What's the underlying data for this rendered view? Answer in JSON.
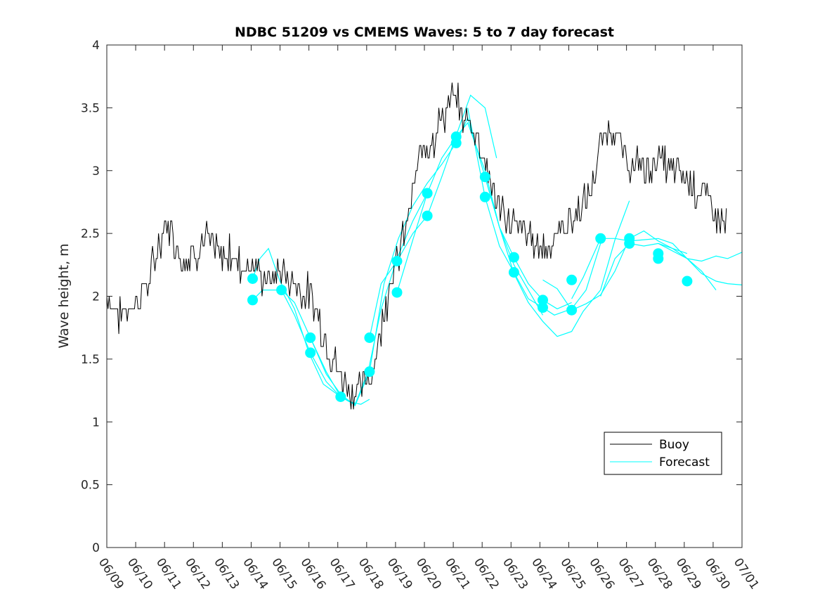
{
  "chart_data": {
    "type": "line",
    "title": "NDBC 51209 vs CMEMS Waves: 5 to 7 day forecast",
    "ylabel": "Wave height, m",
    "xlabel": "",
    "ylim": [
      0,
      4
    ],
    "xlim": [
      0,
      22
    ],
    "y_ticks": [
      "0",
      "0.5",
      "1",
      "1.5",
      "2",
      "2.5",
      "3",
      "3.5",
      "4"
    ],
    "x_ticks": [
      "06/09",
      "06/10",
      "06/11",
      "06/12",
      "06/13",
      "06/14",
      "06/15",
      "06/16",
      "06/17",
      "06/18",
      "06/19",
      "06/20",
      "06/21",
      "06/22",
      "06/23",
      "06/24",
      "06/25",
      "06/26",
      "06/27",
      "06/28",
      "06/29",
      "06/30",
      "07/01"
    ],
    "grid": false,
    "legend_position": "bottom-right",
    "colors": {
      "buoy": "#000000",
      "forecast": "#00ffff"
    },
    "series": [
      {
        "name": "Buoy",
        "x": [
          0,
          0.25,
          0.5,
          0.75,
          1,
          1.25,
          1.5,
          1.75,
          2,
          2.25,
          2.5,
          2.75,
          3,
          3.25,
          3.5,
          3.75,
          4,
          4.25,
          4.5,
          4.75,
          5,
          5.25,
          5.5,
          5.75,
          6,
          6.25,
          6.5,
          6.75,
          7,
          7.25,
          7.5,
          7.75,
          8,
          8.25,
          8.5,
          8.75,
          9,
          9.25,
          9.5,
          9.75,
          10,
          10.25,
          10.5,
          10.75,
          11,
          11.25,
          11.5,
          11.75,
          12,
          12.25,
          12.5,
          12.75,
          13,
          13.25,
          13.5,
          13.75,
          14,
          14.25,
          14.5,
          14.75,
          15,
          15.25,
          15.5,
          15.75,
          16,
          16.25,
          16.5,
          16.75,
          17,
          17.25,
          17.5,
          17.75,
          18,
          18.25,
          18.5,
          18.75,
          19,
          19.25,
          19.5,
          19.75,
          20,
          20.25,
          20.5,
          20.75,
          21,
          21.25,
          21.5
        ],
        "values": [
          2.0,
          1.9,
          1.85,
          1.9,
          1.95,
          2.05,
          2.15,
          2.35,
          2.6,
          2.5,
          2.35,
          2.3,
          2.35,
          2.4,
          2.45,
          2.35,
          2.3,
          2.35,
          2.3,
          2.25,
          2.25,
          2.2,
          2.15,
          2.1,
          2.2,
          2.15,
          2.1,
          2.05,
          2.0,
          1.9,
          1.7,
          1.55,
          1.4,
          1.3,
          1.25,
          1.25,
          1.3,
          1.45,
          1.75,
          2.05,
          2.25,
          2.45,
          2.7,
          3.0,
          3.2,
          3.25,
          3.35,
          3.5,
          3.6,
          3.45,
          3.4,
          3.35,
          3.15,
          2.95,
          2.75,
          2.65,
          2.6,
          2.55,
          2.5,
          2.45,
          2.4,
          2.4,
          2.45,
          2.55,
          2.6,
          2.65,
          2.7,
          2.85,
          3.1,
          3.3,
          3.35,
          3.25,
          3.1,
          3.0,
          3.05,
          3.0,
          3.1,
          3.05,
          3.0,
          3.0,
          2.95,
          2.9,
          2.85,
          2.8,
          2.7,
          2.6,
          2.55
        ]
      },
      {
        "name": "Forecast",
        "segments": [
          {
            "x": [
              5.05,
              5.3,
              5.6,
              6.0,
              6.5,
              7.0,
              7.5,
              8.1
            ],
            "values": [
              2.14,
              2.3,
              2.38,
              2.12,
              1.9,
              1.55,
              1.3,
              1.2
            ]
          },
          {
            "x": [
              5.05,
              5.4,
              6.05,
              6.5,
              7.05,
              7.6,
              8.1,
              8.4,
              8.8,
              9.1
            ],
            "values": [
              1.97,
              2.05,
              2.05,
              1.95,
              1.67,
              1.4,
              1.2,
              1.16,
              1.14,
              1.18
            ]
          },
          {
            "x": [
              6.05,
              6.5,
              7.05,
              7.6,
              8.1,
              8.6,
              9.05,
              9.5,
              10.05,
              10.6,
              11.1
            ],
            "values": [
              2.05,
              1.85,
              1.55,
              1.32,
              1.2,
              1.14,
              1.4,
              1.9,
              2.3,
              2.6,
              2.82
            ]
          },
          {
            "x": [
              7.05,
              7.6,
              8.1,
              8.6,
              9.1,
              9.6,
              10.1,
              10.6,
              11.1,
              11.6,
              12.1
            ],
            "values": [
              1.67,
              1.38,
              1.22,
              1.13,
              1.4,
              2.1,
              2.46,
              2.72,
              2.9,
              3.05,
              3.22
            ]
          },
          {
            "x": [
              9.1,
              9.5,
              10.05,
              10.6,
              11.1,
              11.6,
              12.1,
              12.6,
              13.1,
              13.5
            ],
            "values": [
              1.67,
              2.1,
              2.28,
              2.5,
              2.64,
              2.95,
              3.28,
              3.6,
              3.5,
              3.1
            ]
          },
          {
            "x": [
              10.05,
              10.6,
              11.1,
              11.6,
              12.1,
              12.5,
              13.1,
              13.6,
              14.1,
              14.6,
              15.1
            ],
            "values": [
              2.03,
              2.45,
              2.82,
              3.1,
              3.27,
              3.38,
              3.0,
              2.55,
              2.25,
              2.05,
              1.85
            ]
          },
          {
            "x": [
              12.1,
              12.5,
              13.1,
              13.6,
              14.1,
              14.6,
              15.1,
              15.6,
              16.1
            ],
            "values": [
              3.22,
              3.42,
              2.95,
              2.55,
              2.31,
              2.1,
              1.97,
              1.9,
              1.95
            ]
          },
          {
            "x": [
              12.5,
              13.1,
              13.6,
              14.1,
              14.6,
              15.1,
              15.5,
              16.1,
              16.6,
              17.1
            ],
            "values": [
              3.5,
              2.79,
              2.4,
              2.19,
              1.98,
              1.91,
              1.85,
              1.9,
              2.05,
              2.42
            ]
          },
          {
            "x": [
              13.1,
              13.6,
              14.1,
              14.6,
              15.1,
              15.6,
              16.1,
              16.5,
              17.1,
              17.6,
              18.1
            ],
            "values": [
              2.95,
              2.55,
              2.18,
              1.95,
              1.8,
              1.68,
              1.72,
              1.88,
              2.05,
              2.45,
              2.76
            ]
          },
          {
            "x": [
              15.1,
              15.6,
              16.1,
              16.6,
              17.1,
              17.6,
              18.1,
              18.6,
              19.1,
              19.6,
              20.1
            ],
            "values": [
              2.13,
              2.06,
              1.89,
              1.94,
              2.01,
              2.2,
              2.46,
              2.52,
              2.44,
              2.38,
              2.34
            ]
          },
          {
            "x": [
              16.1,
              16.5,
              17.1,
              17.6,
              18.1,
              18.6,
              19.1,
              19.6,
              20.1,
              20.6,
              21.1,
              21.5,
              22
            ],
            "values": [
              1.98,
              2.15,
              2.46,
              2.46,
              2.44,
              2.45,
              2.46,
              2.42,
              2.3,
              2.18,
              2.12,
              2.1,
              2.09
            ]
          },
          {
            "x": [
              17.1,
              17.6,
              18.1,
              18.6,
              19.1,
              19.6,
              20.1,
              20.6,
              21.1,
              21.5,
              22
            ],
            "values": [
              2.0,
              2.3,
              2.42,
              2.4,
              2.42,
              2.38,
              2.3,
              2.28,
              2.32,
              2.3,
              2.35
            ]
          },
          {
            "x": [
              19.1,
              19.6,
              20.1,
              20.6,
              21.1
            ],
            "values": [
              2.42,
              2.36,
              2.3,
              2.2,
              2.05
            ]
          }
        ],
        "markers": {
          "x": [
            5.05,
            5.05,
            6.05,
            7.05,
            7.05,
            8.1,
            9.1,
            9.1,
            10.05,
            10.05,
            11.1,
            11.1,
            12.1,
            12.1,
            13.1,
            13.1,
            14.1,
            14.1,
            15.1,
            15.1,
            16.1,
            16.1,
            17.1,
            18.1,
            18.1,
            19.1,
            19.1,
            20.1
          ],
          "values": [
            2.14,
            1.97,
            2.05,
            1.67,
            1.55,
            1.2,
            1.67,
            1.4,
            2.28,
            2.03,
            2.82,
            2.64,
            3.27,
            3.22,
            2.95,
            2.79,
            2.31,
            2.19,
            1.97,
            1.91,
            2.13,
            1.89,
            2.46,
            2.46,
            2.42,
            2.34,
            2.3,
            2.12
          ]
        }
      }
    ],
    "legend": [
      "Buoy",
      "Forecast"
    ]
  }
}
